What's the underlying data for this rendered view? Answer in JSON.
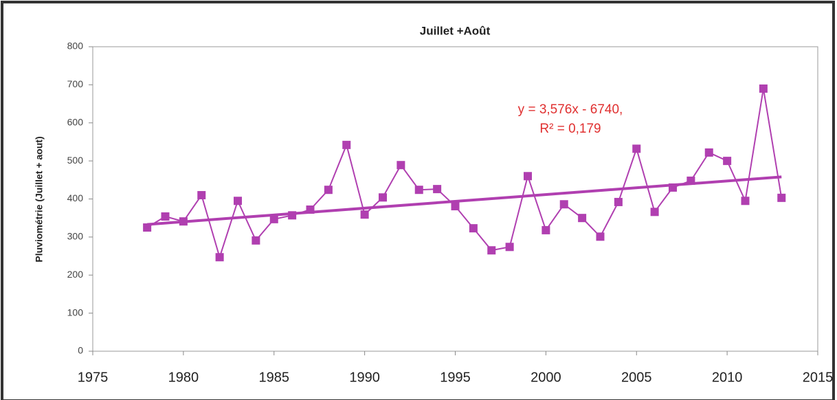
{
  "chart_data": {
    "type": "line",
    "title": "Juillet +Août",
    "ylabel": "Pluviométrie (Juillet + aout)",
    "annotations": [
      "y = 3,576x - 6740,",
      "R² = 0,179"
    ],
    "x": [
      1978,
      1979,
      1980,
      1981,
      1982,
      1983,
      1984,
      1985,
      1986,
      1987,
      1988,
      1989,
      1990,
      1991,
      1992,
      1993,
      1994,
      1995,
      1996,
      1997,
      1998,
      1999,
      2000,
      2001,
      2002,
      2003,
      2004,
      2005,
      2006,
      2007,
      2008,
      2009,
      2010,
      2011,
      2012,
      2013
    ],
    "series": [
      {
        "name": "Pluviométrie",
        "color": "#b03fb0",
        "values": [
          325,
          354,
          341,
          410,
          247,
          395,
          291,
          347,
          357,
          372,
          424,
          542,
          359,
          404,
          489,
          424,
          426,
          381,
          323,
          265,
          274,
          460,
          318,
          386,
          350,
          301,
          392,
          532,
          366,
          430,
          448,
          522,
          500,
          395,
          690,
          403
        ]
      }
    ],
    "trendline": {
      "x": [
        1978,
        2013
      ],
      "values": [
        333,
        458
      ],
      "color": "#b03fb0"
    },
    "xlim": [
      1975,
      2015
    ],
    "xticks": [
      1975,
      1980,
      1985,
      1990,
      1995,
      2000,
      2005,
      2010,
      2015
    ],
    "ylim": [
      0,
      800
    ],
    "yticks": [
      0,
      100,
      200,
      300,
      400,
      500,
      600,
      700,
      800
    ],
    "grid": false
  }
}
